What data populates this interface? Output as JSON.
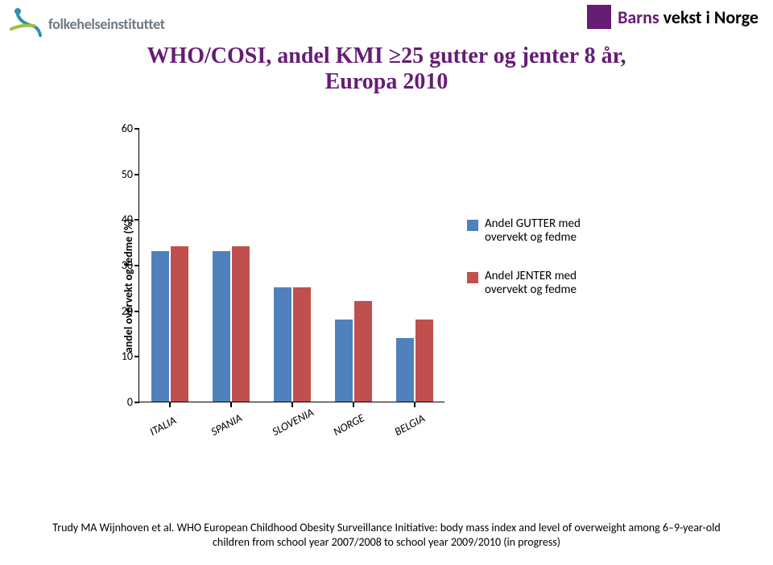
{
  "header": {
    "fhi_logo_text": "folkehelseinstituttet",
    "barns_text": "Barns vekst i Norge",
    "barns_colors": {
      "barns": "#651d74",
      "vekst": "#000000"
    },
    "square_color": "#651d74"
  },
  "title": {
    "line1": "WHO/COSI, andel KMI ≥25 gutter og jenter 8 år,",
    "line2": "Europa 2010",
    "color": "#651d74",
    "fontsize": 28
  },
  "chart": {
    "type": "bar",
    "ylabel": "andel overvekt og fedme (%)",
    "ylabel_fontsize": 14,
    "ylim": [
      0,
      60
    ],
    "ytick_step": 10,
    "yticks": [
      0,
      10,
      20,
      30,
      40,
      50,
      60
    ],
    "categories": [
      "ITALIA",
      "SPANIA",
      "SLOVENIA",
      "NORGE",
      "BELGIA"
    ],
    "series": [
      {
        "name": "Andel GUTTER med overvekt og fedme",
        "color": "#4f81bd",
        "values": [
          33,
          33,
          25,
          18,
          14
        ]
      },
      {
        "name": "Andel JENTER med overvekt og fedme",
        "color": "#c0504d",
        "values": [
          34,
          34,
          25,
          22,
          18
        ]
      }
    ],
    "bar_width": 0.28,
    "background_color": "#ffffff",
    "axis_color": "#000000",
    "tick_fontsize": 14,
    "xlabel_fontsize": 14,
    "xlabel_rotation_deg": -28,
    "legend_fontsize": 15
  },
  "citation": {
    "text": "Trudy MA Wijnhoven et al. WHO European Childhood Obesity Surveillance Initiative: body mass index and level of overweight among 6–9-year-old children from school year 2007/2008 to school year 2009/2010 (in progress)",
    "fontsize": 14
  }
}
